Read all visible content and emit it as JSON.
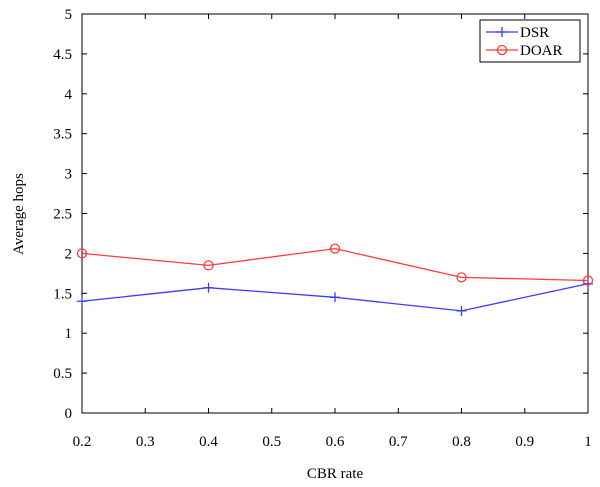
{
  "chart_data": {
    "type": "line",
    "xlabel": "CBR rate",
    "ylabel": "Average hops",
    "x": [
      0.2,
      0.4,
      0.6,
      0.8,
      1.0
    ],
    "xlim": [
      0.2,
      1.0
    ],
    "ylim": [
      0,
      5
    ],
    "xticks": [
      0.2,
      0.3,
      0.4,
      0.5,
      0.6,
      0.7,
      0.8,
      0.9,
      1.0
    ],
    "xtick_labels": [
      "0.2",
      "0.3",
      "0.4",
      "0.5",
      "0.6",
      "0.7",
      "0.8",
      "0.9",
      "1"
    ],
    "yticks": [
      0,
      0.5,
      1,
      1.5,
      2,
      2.5,
      3,
      3.5,
      4,
      4.5,
      5
    ],
    "ytick_labels": [
      "0",
      "0.5",
      "1",
      "1.5",
      "2",
      "2.5",
      "3",
      "3.5",
      "4",
      "4.5",
      "5"
    ],
    "grid": false,
    "legend_position": "top-right",
    "series": [
      {
        "name": "DSR",
        "values": [
          1.4,
          1.57,
          1.45,
          1.28,
          1.62
        ],
        "color": "#3b3bff",
        "marker": "plus"
      },
      {
        "name": "DOAR",
        "values": [
          2.0,
          1.85,
          2.06,
          1.7,
          1.66
        ],
        "color": "#ff3b3b",
        "marker": "circle"
      }
    ]
  }
}
